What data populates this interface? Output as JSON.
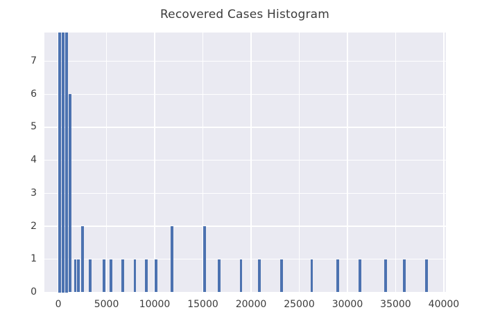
{
  "chart_data": {
    "type": "bar",
    "subtype": "histogram",
    "title": "Recovered Cases Histogram",
    "xlabel": "",
    "ylabel": "",
    "x_tick_values": [
      0,
      5000,
      10000,
      15000,
      20000,
      25000,
      30000,
      35000,
      40000
    ],
    "x_tick_labels": [
      "0",
      "5000",
      "10000",
      "15000",
      "20000",
      "25000",
      "30000",
      "35000",
      "40000"
    ],
    "y_tick_values": [
      0,
      1,
      2,
      3,
      4,
      5,
      6,
      7
    ],
    "y_tick_labels": [
      "0",
      "1",
      "2",
      "3",
      "4",
      "5",
      "6",
      "7"
    ],
    "xlim": [
      -1480,
      40220
    ],
    "ylim": [
      0,
      7.88
    ],
    "grid": true,
    "legend": false,
    "bin_width": 385,
    "note": "bars with count 8 are clipped by the top of the axes",
    "bars": [
      {
        "x": 110,
        "count": 8
      },
      {
        "x": 490,
        "count": 8
      },
      {
        "x": 850,
        "count": 8
      },
      {
        "x": 1210,
        "count": 6
      },
      {
        "x": 1760,
        "count": 1
      },
      {
        "x": 2090,
        "count": 1
      },
      {
        "x": 2530,
        "count": 2
      },
      {
        "x": 3320,
        "count": 1
      },
      {
        "x": 4760,
        "count": 1
      },
      {
        "x": 5480,
        "count": 1
      },
      {
        "x": 6670,
        "count": 1
      },
      {
        "x": 7950,
        "count": 1
      },
      {
        "x": 9130,
        "count": 1
      },
      {
        "x": 10140,
        "count": 1
      },
      {
        "x": 11780,
        "count": 2
      },
      {
        "x": 15170,
        "count": 2
      },
      {
        "x": 16680,
        "count": 1
      },
      {
        "x": 18960,
        "count": 1
      },
      {
        "x": 20870,
        "count": 1
      },
      {
        "x": 23150,
        "count": 1
      },
      {
        "x": 26300,
        "count": 1
      },
      {
        "x": 29000,
        "count": 1
      },
      {
        "x": 31300,
        "count": 1
      },
      {
        "x": 33990,
        "count": 1
      },
      {
        "x": 35900,
        "count": 1
      },
      {
        "x": 38180,
        "count": 1
      }
    ],
    "colors": {
      "bar": "#4C72B0",
      "plot_background": "#EAEAF2",
      "grid": "#FFFFFF",
      "text": "#3B3B3B",
      "figure_background": "#FFFFFF"
    }
  }
}
